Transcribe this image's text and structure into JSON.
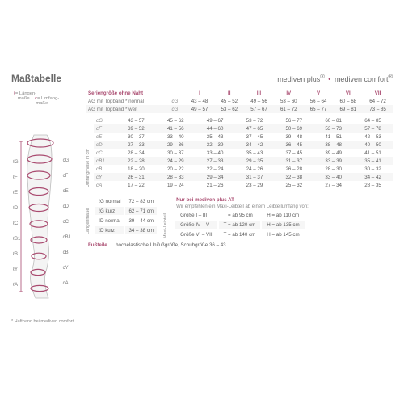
{
  "header": {
    "title": "Maßtabelle",
    "brand_left": "mediven plus",
    "brand_right": "mediven comfort",
    "reg": "®"
  },
  "colors": {
    "accent": "#a94a6f",
    "text": "#6a6a6a",
    "muted": "#888888",
    "zebra": "#f6f6f6"
  },
  "legend": {
    "l": "ℓ= Längen-\nmaße",
    "c": "c= Umfang-\nmaße"
  },
  "serien": {
    "head": "Seriengröße ohne Naht",
    "sizes": [
      "I",
      "II",
      "III",
      "IV",
      "V",
      "VI",
      "VII"
    ],
    "rows": [
      {
        "label": "AG mit Topband * normal",
        "code": "cG",
        "vals": [
          "43 – 48",
          "45 – 52",
          "49 – 56",
          "53 – 60",
          "56 – 64",
          "60 – 68",
          "64 – 72"
        ]
      },
      {
        "label": "AG mit Topband * weit",
        "code": "cG",
        "vals": [
          "49 – 57",
          "53 – 62",
          "57 – 67",
          "61 – 72",
          "65 – 77",
          "69 – 81",
          "73 – 85"
        ]
      }
    ]
  },
  "umfang": {
    "sideLabel": "Umfangmaße in cm",
    "rows": [
      {
        "code": "cG",
        "vals": [
          "43 – 57",
          "45 – 62",
          "49 – 67",
          "53 – 72",
          "56 – 77",
          "60 – 81",
          "64 – 85"
        ]
      },
      {
        "code": "cF",
        "vals": [
          "39 – 52",
          "41 – 56",
          "44 – 60",
          "47 – 65",
          "50 – 69",
          "53 – 73",
          "57 – 78"
        ]
      },
      {
        "code": "cE",
        "vals": [
          "30 – 37",
          "33 – 40",
          "35 – 43",
          "37 – 45",
          "39 – 48",
          "41 – 51",
          "42 – 53"
        ]
      },
      {
        "code": "cD",
        "vals": [
          "27 – 33",
          "29 – 36",
          "32 – 39",
          "34 – 42",
          "36 – 45",
          "38 – 48",
          "40 – 50"
        ]
      },
      {
        "code": "cC",
        "vals": [
          "28 – 34",
          "30 – 37",
          "33 – 40",
          "35 – 43",
          "37 – 45",
          "39 – 49",
          "41 – 51"
        ]
      },
      {
        "code": "cB1",
        "vals": [
          "22 – 28",
          "24 – 29",
          "27 – 33",
          "29 – 35",
          "31 – 37",
          "33 – 39",
          "35 – 41"
        ]
      },
      {
        "code": "cB",
        "vals": [
          "18 – 20",
          "20 – 22",
          "22 – 24",
          "24 – 26",
          "26 – 28",
          "28 – 30",
          "30 – 32"
        ]
      },
      {
        "code": "cY",
        "vals": [
          "26 – 31",
          "28 – 33",
          "29 – 34",
          "31 – 37",
          "32 – 38",
          "33 – 40",
          "34 – 42"
        ]
      },
      {
        "code": "cA",
        "vals": [
          "17 – 22",
          "19 – 24",
          "21 – 26",
          "23 – 29",
          "25 – 32",
          "27 – 34",
          "28 – 35"
        ]
      }
    ]
  },
  "laengen": {
    "sideLabel": "Längenmaße",
    "rows": [
      {
        "code": "ℓG normal",
        "val": "72 – 83 cm"
      },
      {
        "code": "ℓG kurz",
        "val": "62 – 71 cm"
      },
      {
        "code": "ℓD normal",
        "val": "39 – 44 cm"
      },
      {
        "code": "ℓD kurz",
        "val": "34 – 38 cm"
      }
    ]
  },
  "maxi": {
    "sideLabel": "Maxi-Leibteil",
    "head": "Nur bei mediven plus AT",
    "note": "Wir empfehlen ein Maxi-Leibteil ab einem Leibteilumfang von:",
    "rows": [
      {
        "g": "Größe I – III",
        "t": "T = ab  95 cm",
        "h": "H = ab 110 cm"
      },
      {
        "g": "Größe IV – V",
        "t": "T = ab 120 cm",
        "h": "H = ab 135 cm"
      },
      {
        "g": "Größe VI – VII",
        "t": "T = ab 140 cm",
        "h": "H = ab 145 cm"
      }
    ]
  },
  "fuss": {
    "head": "Fußteile",
    "text": "hochelastische Unifußgröße, Schuhgröße 36 – 43"
  },
  "haft": "* Haftband bei mediven comfort",
  "legLabels": {
    "left": [
      "ℓG",
      "ℓF",
      "ℓE",
      "ℓD",
      "ℓC",
      "ℓB1",
      "ℓB",
      "ℓY",
      "ℓA"
    ],
    "right": [
      "cG",
      "cF",
      "cE",
      "cD",
      "cC",
      "cB1",
      "cB",
      "cY",
      "cA"
    ]
  }
}
